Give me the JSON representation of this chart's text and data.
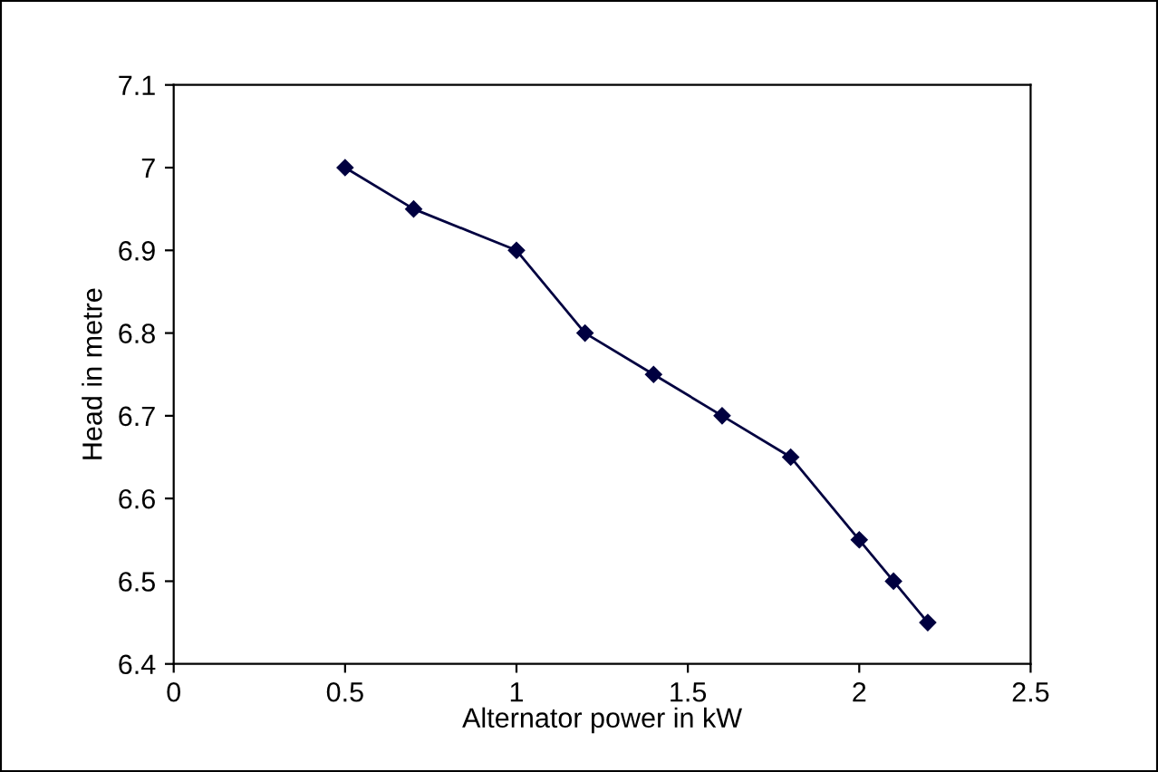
{
  "chart_data": {
    "type": "line",
    "xlabel": "Alternator power in kW",
    "ylabel": "Head in metre",
    "x": [
      0.5,
      0.7,
      1,
      1.2,
      1.4,
      1.6,
      1.8,
      2,
      2.1,
      2.2
    ],
    "series": [
      {
        "color": "#000040",
        "values": [
          7,
          6.95,
          6.9,
          6.8,
          6.75,
          6.7,
          6.65,
          6.55,
          6.5,
          6.45
        ]
      }
    ],
    "xlim": [
      0,
      2.5
    ],
    "xticks": [
      0,
      0.5,
      1,
      1.5,
      2,
      2.5
    ],
    "ylim": [
      6.4,
      7.1
    ],
    "yticks": [
      6.4,
      6.5,
      6.6,
      6.7,
      6.8,
      6.9,
      7,
      7.1
    ],
    "marker": "diamond",
    "line_style": "solid",
    "grid": false,
    "legend": false
  }
}
